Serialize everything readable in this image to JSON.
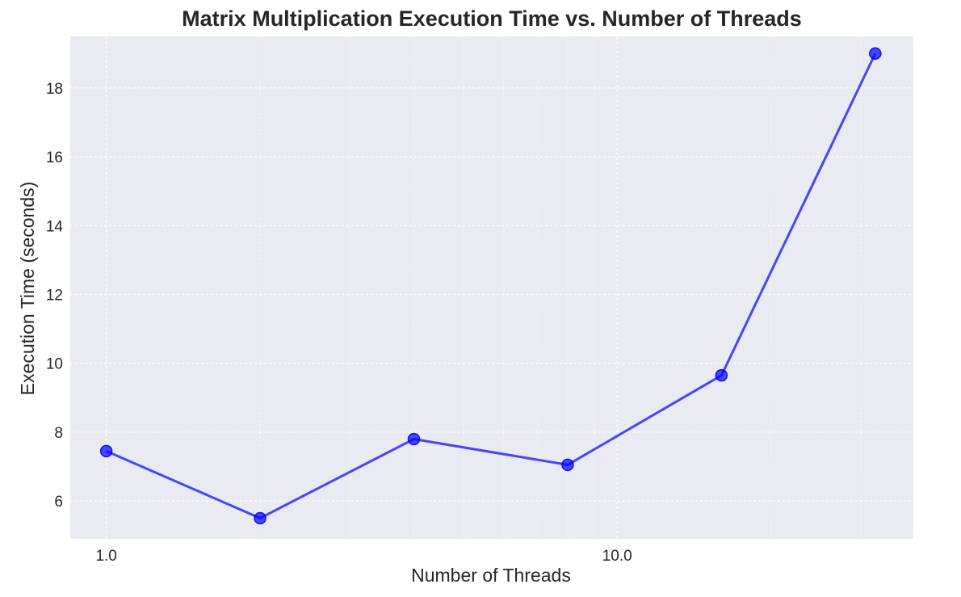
{
  "chart_data": {
    "type": "line",
    "title": "Matrix Multiplication Execution Time vs. Number of Threads",
    "xlabel": "Number of Threads",
    "ylabel": "Execution Time (seconds)",
    "xscale": "log",
    "xlim": [
      0.85,
      38
    ],
    "ylim": [
      4.9,
      19.5
    ],
    "grid": true,
    "x_ticks": [
      1.0,
      10.0
    ],
    "x_tick_labels": [
      "1.0",
      "10.0"
    ],
    "x_minor_ticks": [
      2,
      3,
      4,
      5,
      6,
      7,
      8,
      9,
      20,
      30
    ],
    "y_ticks": [
      6,
      8,
      10,
      12,
      14,
      16,
      18
    ],
    "y_tick_labels": [
      "6",
      "8",
      "10",
      "12",
      "14",
      "16",
      "18"
    ],
    "line_color": "#0000ff",
    "plot_background": "#eaeaf2",
    "series": [
      {
        "x": [
          1,
          2,
          4,
          8,
          16,
          32
        ],
        "values": [
          7.45,
          5.5,
          7.8,
          7.05,
          9.65,
          19.0
        ]
      }
    ]
  }
}
